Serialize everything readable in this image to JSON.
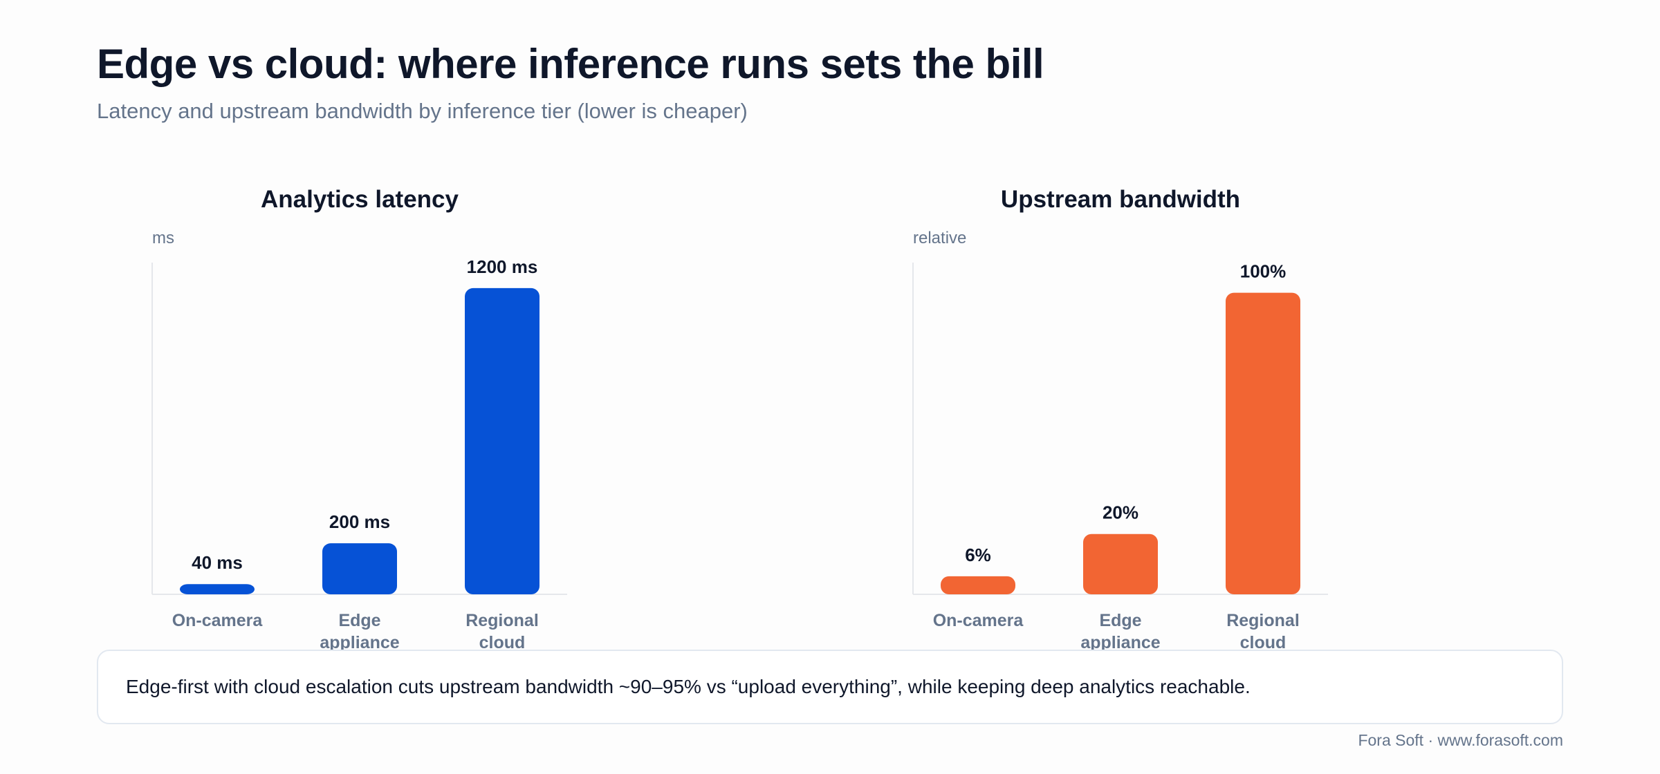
{
  "header": {
    "title": "Edge vs cloud: where inference runs sets the bill",
    "subtitle": "Latency and upstream bandwidth by inference tier (lower is cheaper)"
  },
  "chart_data": [
    {
      "type": "bar",
      "title": "Analytics latency",
      "ylabel": "ms",
      "categories": [
        [
          "On-camera"
        ],
        [
          "Edge",
          "appliance"
        ],
        [
          "Regional",
          "cloud"
        ]
      ],
      "values": [
        40,
        200,
        1200
      ],
      "value_labels": [
        "40 ms",
        "200 ms",
        "1200 ms"
      ],
      "ylim": [
        0,
        1300
      ],
      "color": "#0652d6",
      "grid": false
    },
    {
      "type": "bar",
      "title": "Upstream bandwidth",
      "ylabel": "relative",
      "categories": [
        [
          "On-camera"
        ],
        [
          "Edge",
          "appliance"
        ],
        [
          "Regional",
          "cloud"
        ]
      ],
      "values": [
        6,
        20,
        100
      ],
      "value_labels": [
        "6%",
        "20%",
        "100%"
      ],
      "ylim": [
        0,
        110
      ],
      "color": "#f26533",
      "grid": false
    }
  ],
  "callout": {
    "text": "Edge-first with cloud escalation cuts upstream bandwidth ~90–95% vs “upload everything”, while keeping deep analytics reachable."
  },
  "footer": {
    "text": "Fora Soft · www.forasoft.com"
  }
}
